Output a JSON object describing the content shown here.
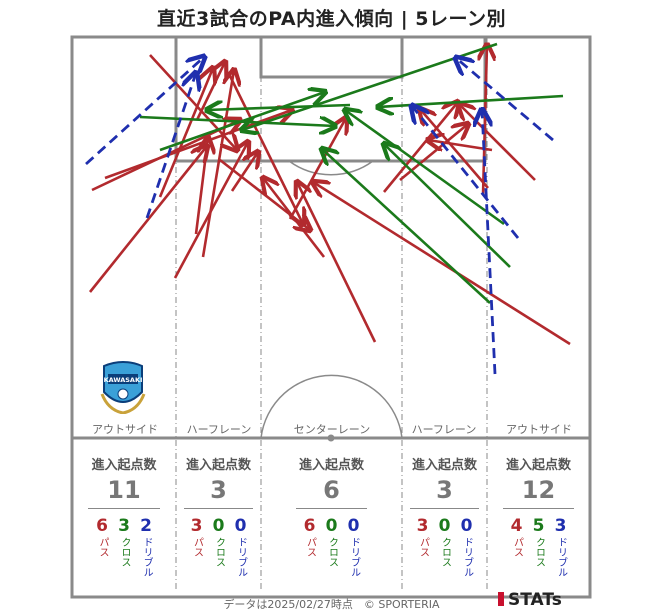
{
  "title": "直近3試合のPA内進入傾向 | 5レーン別",
  "lanes": [
    "アウトサイド",
    "ハーフレーン",
    "センターレーン",
    "ハーフレーン",
    "アウトサイド"
  ],
  "legend_words": {
    "pass": "パス",
    "cross": "クロス",
    "dribble": "ドリブル"
  },
  "stats_caption": "進入起点数",
  "stats": [
    {
      "total": "11",
      "pass": "6",
      "cross": "3",
      "dribble": "2"
    },
    {
      "total": "3",
      "pass": "3",
      "cross": "0",
      "dribble": "0"
    },
    {
      "total": "6",
      "pass": "6",
      "cross": "0",
      "dribble": "0"
    },
    {
      "total": "3",
      "pass": "3",
      "cross": "0",
      "dribble": "0"
    },
    {
      "total": "12",
      "pass": "4",
      "cross": "5",
      "dribble": "3"
    }
  ],
  "footer": "データは2025/02/27時点　© SPORTERIA",
  "brand": "STATs",
  "emblem_text": "KAWASAKI",
  "colors": {
    "pass": "#b22a2e",
    "cross": "#1b7a1b",
    "dribble": "#1f2fae",
    "pitch_line": "#8a8a8a"
  }
}
